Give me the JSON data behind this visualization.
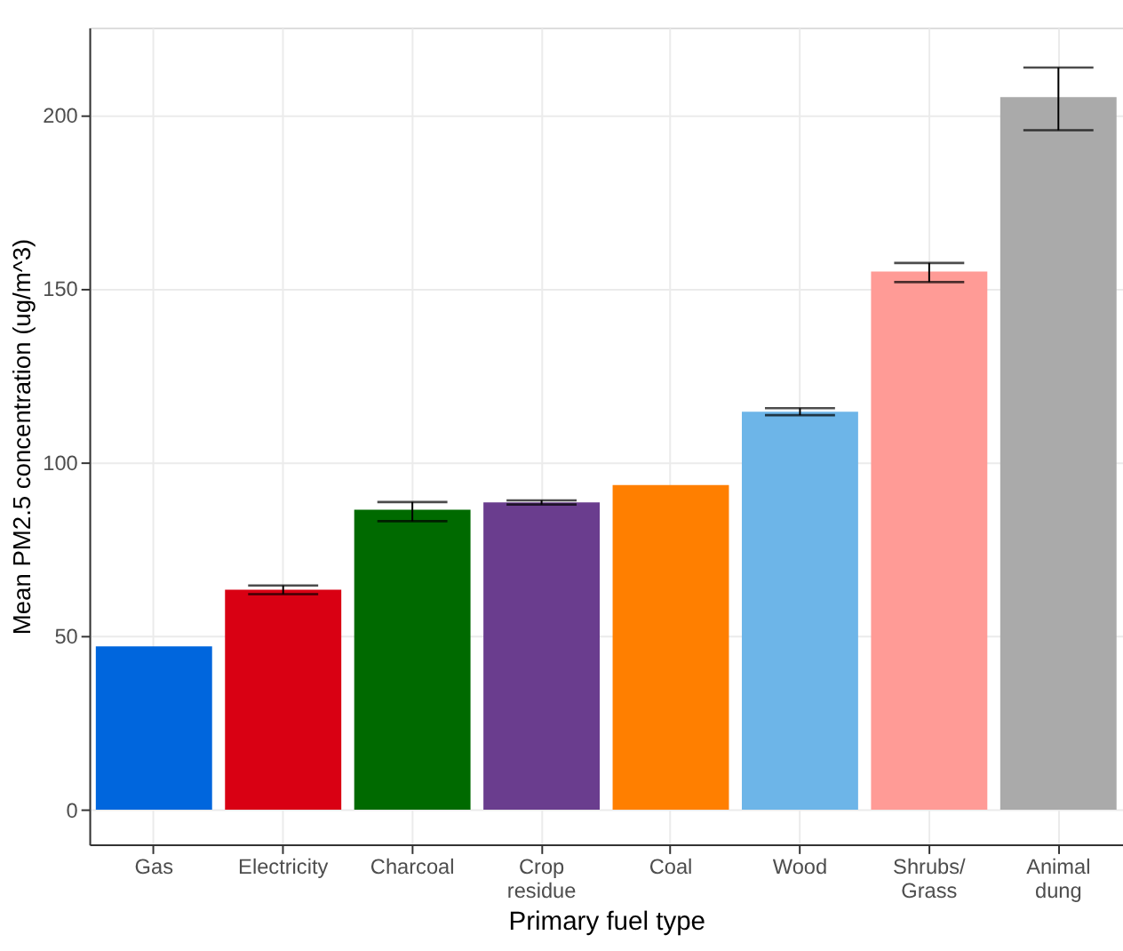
{
  "chart_data": {
    "type": "bar",
    "xlabel": "Primary fuel type",
    "ylabel": "Mean PM2.5 concentration (ug/m^3)",
    "categories": [
      "Gas",
      "Electricity",
      "Charcoal",
      "Crop\nresidue",
      "Coal",
      "Wood",
      "Shrubs/\nGrass",
      "Animal\ndung"
    ],
    "values": [
      47,
      63.3,
      86.3,
      88.4,
      93.4,
      114.5,
      154.8,
      205
    ],
    "colors": [
      "#0066dd",
      "#d90013",
      "#006a00",
      "#6a3d8e",
      "#ff7f00",
      "#6db5e8",
      "#ff9b96",
      "#aaaaaa"
    ],
    "errors": [
      null,
      [
        62,
        64.5
      ],
      [
        83,
        88.5
      ],
      [
        87.8,
        89
      ],
      null,
      [
        113.5,
        115.5
      ],
      [
        151.8,
        157.3
      ],
      [
        195.5,
        213.5
      ]
    ],
    "ylim": [
      -10,
      225
    ],
    "yticks": [
      0,
      50,
      100,
      150,
      200
    ],
    "grid": true
  }
}
